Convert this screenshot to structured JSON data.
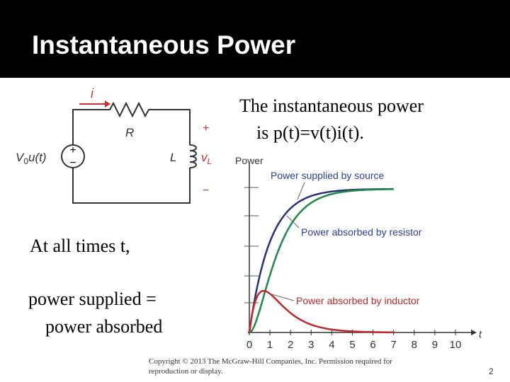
{
  "header": {
    "title": "Instantaneous Power"
  },
  "body": {
    "definition_line1": "The instantaneous power",
    "definition_line2": "is p(t)=v(t)i(t).",
    "times": "At all times t,",
    "balance_line1": "power supplied =",
    "balance_line2": "power absorbed"
  },
  "circuit": {
    "current": "i",
    "resistor": "R",
    "inductor": "L",
    "plus": "+",
    "minus": "−",
    "source": {
      "base": "V",
      "sub": "0",
      "rest": "u(t)"
    },
    "voltage": {
      "base": "v",
      "sub": "L"
    }
  },
  "graph": {
    "y_label": "Power",
    "x_label": "t",
    "xticks": [
      0,
      1,
      2,
      3,
      4,
      5,
      6,
      7,
      8,
      9,
      10
    ],
    "curves": [
      {
        "label": "Power supplied by source"
      },
      {
        "label": "Power absorbed by resistor"
      },
      {
        "label": "Power absorbed by inductor"
      }
    ]
  },
  "footer": {
    "copyright_line1": "Copyright © 2013 The McGraw-Hill Companies, Inc. Permission required for",
    "copyright_line2": "reproduction or display.",
    "page": "2"
  }
}
